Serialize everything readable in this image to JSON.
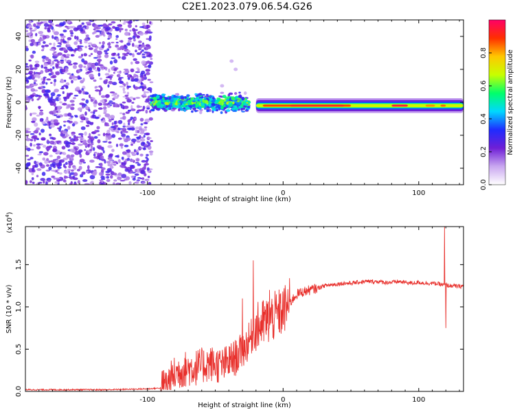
{
  "page": {
    "title": "C2E1.2023.079.06.54.G26"
  },
  "chart_data": [
    {
      "type": "heatmap",
      "title": "C2E1.2023.079.06.54.G26",
      "xlabel": "Height of straight line (km)",
      "ylabel": "Frequency (Hz)",
      "xlim": [
        -190,
        133
      ],
      "ylim": [
        -50,
        50
      ],
      "x_ticks": [
        -100,
        0,
        100
      ],
      "x_tick_labels": [
        "-100",
        "0",
        "100"
      ],
      "y_ticks": [
        -40,
        -20,
        0,
        20,
        40
      ],
      "y_tick_labels": [
        "-40",
        "-20",
        "0",
        "20",
        "40"
      ],
      "colorbar": {
        "label": "Normalized spectral amplitude",
        "range": [
          0,
          1
        ],
        "ticks": [
          0.0,
          0.2,
          0.4,
          0.6,
          0.8
        ],
        "tick_labels": [
          "0.0",
          "0.2",
          "0.4",
          "0.6",
          "0.8"
        ],
        "colormap": [
          "#ffffff",
          "#c9a7f0",
          "#6f1fd6",
          "#1f2cff",
          "#00d8ff",
          "#00ff6a",
          "#c8ff00",
          "#ffc800",
          "#ff3000",
          "#ff0066"
        ]
      },
      "regions": [
        {
          "x_range": [
            -190,
            -97
          ],
          "freq_range": [
            -50,
            50
          ],
          "amplitude": "low, broadband noise"
        },
        {
          "x_range": [
            -97,
            -25
          ],
          "freq_center": 0,
          "freq_halfwidth": 7,
          "amplitude": "medium, scattered"
        },
        {
          "x_range": [
            -20,
            133
          ],
          "freq_center": -2,
          "freq_halfwidth": 4,
          "amplitude": "high, narrowband"
        }
      ],
      "grid": false
    },
    {
      "type": "line",
      "xlabel": "Height of straight line (km)",
      "ylabel": "SNR (10 * v/v)",
      "y_multiplier": "(x10^4)",
      "xlim": [
        -190,
        133
      ],
      "ylim": [
        0,
        1.95
      ],
      "x_ticks": [
        -100,
        0,
        100
      ],
      "x_tick_labels": [
        "-100",
        "0",
        "100"
      ],
      "y_ticks": [
        0.0,
        0.5,
        1.0,
        1.5
      ],
      "y_tick_labels": [
        "0.0",
        "0.5",
        "1.0",
        "1.5"
      ],
      "series": [
        {
          "color": "#e8302c",
          "x": [
            -190,
            -160,
            -130,
            -100,
            -90,
            -85,
            -80,
            -75,
            -70,
            -65,
            -60,
            -55,
            -50,
            -45,
            -40,
            -35,
            -30,
            -25,
            -20,
            -15,
            -10,
            -5,
            0,
            5,
            10,
            15,
            20,
            25,
            30,
            35,
            40,
            45,
            50,
            55,
            60,
            65,
            70,
            75,
            80,
            85,
            90,
            95,
            100,
            105,
            110,
            115,
            118,
            120,
            122,
            125,
            130,
            133
          ],
          "y": [
            0.02,
            0.02,
            0.02,
            0.03,
            0.04,
            0.1,
            0.2,
            0.25,
            0.27,
            0.28,
            0.3,
            0.33,
            0.32,
            0.3,
            0.35,
            0.4,
            0.48,
            0.6,
            0.75,
            0.8,
            0.85,
            0.9,
            0.95,
            1.05,
            1.15,
            1.18,
            1.2,
            1.22,
            1.25,
            1.26,
            1.27,
            1.28,
            1.28,
            1.29,
            1.3,
            1.3,
            1.3,
            1.29,
            1.29,
            1.3,
            1.29,
            1.28,
            1.29,
            1.28,
            1.28,
            1.27,
            1.26,
            1.26,
            1.25,
            1.25,
            1.24,
            1.25
          ],
          "spikes": [
            {
              "x": -22,
              "y": 1.55
            },
            {
              "x": -30,
              "y": 1.1
            },
            {
              "x": -10,
              "y": 1.2
            },
            {
              "x": 119,
              "y": 1.95
            },
            {
              "x": 120,
              "y": 0.75
            }
          ]
        }
      ],
      "grid": false
    }
  ]
}
